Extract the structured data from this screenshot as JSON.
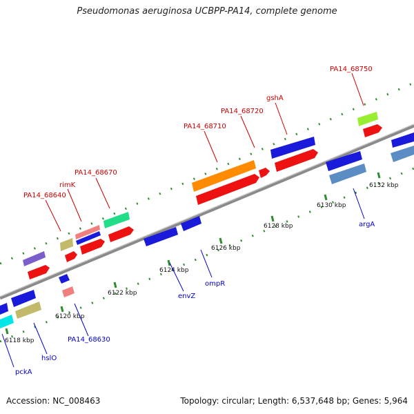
{
  "title": "Pseudomonas aeruginosa UCBPP-PA14, complete genome",
  "footer": {
    "accession": "Accession: NC_008463",
    "summary": "Topology: circular; Length: 6,537,648 bp; Genes: 5,964"
  },
  "colors": {
    "backbone": "#8a8a8a",
    "dot_track": "#2e8b2e",
    "top_label": "#cc0000",
    "bottom_label": "#0000cc"
  },
  "ticks": [
    {
      "label": "6118 kbp"
    },
    {
      "label": "6120 kbp"
    },
    {
      "label": "6122 kbp"
    },
    {
      "label": "6124 kbp"
    },
    {
      "label": "6126 kbp"
    },
    {
      "label": "6128 kbp"
    },
    {
      "label": "6130 kbp"
    },
    {
      "label": "6132 kbp"
    }
  ],
  "labels_top": [
    {
      "text": "PA14_68640"
    },
    {
      "text": "rimK"
    },
    {
      "text": "PA14_68670"
    },
    {
      "text": "PA14_68710"
    },
    {
      "text": "PA14_68720"
    },
    {
      "text": "gshA"
    },
    {
      "text": "PA14_68750"
    }
  ],
  "labels_bottom": [
    {
      "text": "pckA"
    },
    {
      "text": "hslO"
    },
    {
      "text": "PA14_68630"
    },
    {
      "text": "envZ"
    },
    {
      "text": "ompR"
    },
    {
      "text": "argA"
    }
  ]
}
